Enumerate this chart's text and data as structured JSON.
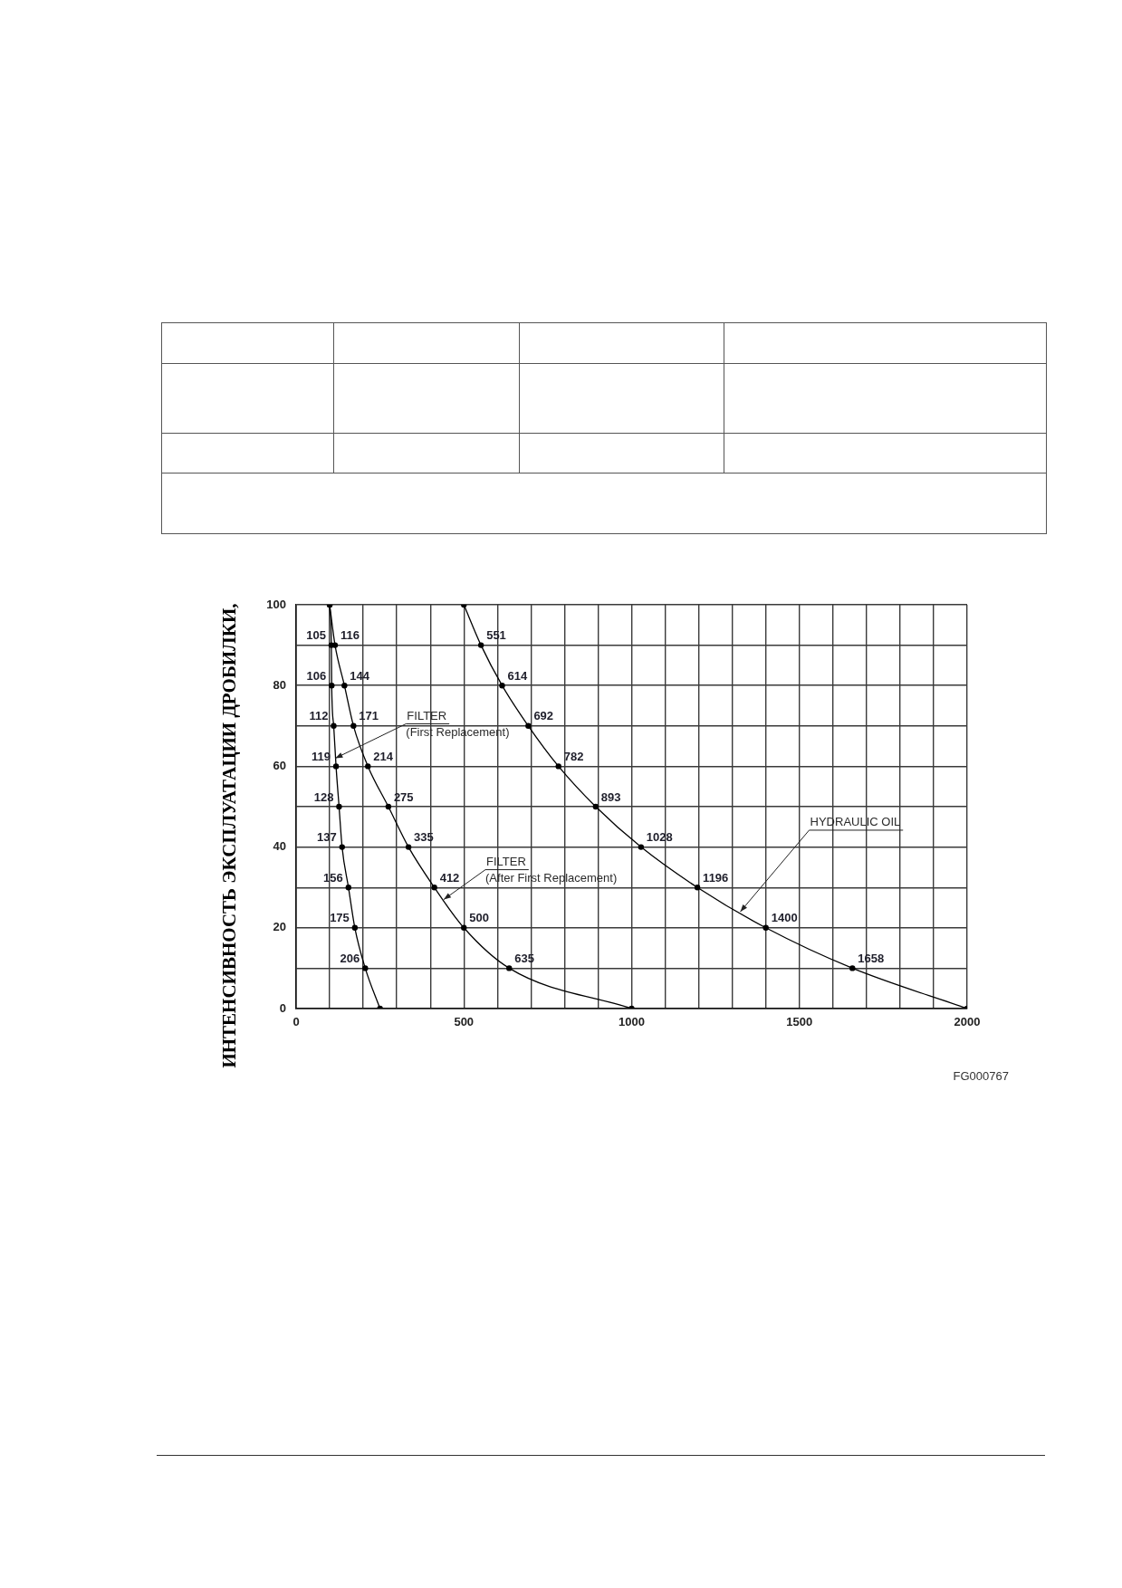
{
  "chart_data": {
    "type": "line",
    "ylabel": "ИНТЕНСИВНОСТЬ ЭКСПЛУАТАЦИИ ДРОБИЛКИ,",
    "xlim": [
      0,
      2000
    ],
    "ylim": [
      0,
      100
    ],
    "xticks": [
      0,
      {
        "value": 100,
        "label": null
      },
      {
        "value": 200,
        "label": null
      },
      {
        "value": 300,
        "label": null
      },
      {
        "value": 400,
        "label": null
      },
      500,
      {
        "value": 600,
        "label": null
      },
      {
        "value": 700,
        "label": null
      },
      {
        "value": 800,
        "label": null
      },
      {
        "value": 900,
        "label": null
      },
      1000,
      {
        "value": 1100,
        "label": null
      },
      {
        "value": 1200,
        "label": null
      },
      {
        "value": 1300,
        "label": null
      },
      {
        "value": 1400,
        "label": null
      },
      1500,
      {
        "value": 1600,
        "label": null
      },
      {
        "value": 1700,
        "label": null
      },
      {
        "value": 1800,
        "label": null
      },
      {
        "value": 1900,
        "label": null
      },
      2000
    ],
    "yticks": [
      0,
      {
        "value": 10,
        "label": null
      },
      20,
      {
        "value": 30,
        "label": null
      },
      40,
      {
        "value": 50,
        "label": null
      },
      60,
      {
        "value": 70,
        "label": null
      },
      80,
      {
        "value": 90,
        "label": null
      },
      100
    ],
    "grid": true,
    "marker": "circle",
    "line_style": "solid",
    "series": [
      {
        "color": "#000000",
        "x": [
          100,
          105,
          106,
          112,
          119,
          128,
          137,
          156,
          175,
          206,
          250
        ],
        "values": [
          100,
          90,
          80,
          70,
          60,
          50,
          40,
          30,
          20,
          10,
          0
        ]
      },
      {
        "color": "#000000",
        "x": [
          100,
          116,
          144,
          171,
          214,
          275,
          335,
          412,
          500,
          635,
          1000
        ],
        "values": [
          100,
          90,
          80,
          70,
          60,
          50,
          40,
          30,
          20,
          10,
          0
        ]
      },
      {
        "color": "#000000",
        "x": [
          500,
          551,
          614,
          692,
          782,
          893,
          1028,
          1196,
          1400,
          1658,
          2000
        ],
        "values": [
          100,
          90,
          80,
          70,
          60,
          50,
          40,
          30,
          20,
          10,
          0
        ]
      }
    ],
    "annotations": [
      {
        "text": "105",
        "x": 105,
        "y": 90
      },
      {
        "text": "106",
        "x": 106,
        "y": 80
      },
      {
        "text": "112",
        "x": 112,
        "y": 70
      },
      {
        "text": "119",
        "x": 119,
        "y": 60
      },
      {
        "text": "128",
        "x": 128,
        "y": 50
      },
      {
        "text": "137",
        "x": 137,
        "y": 40
      },
      {
        "text": "156",
        "x": 156,
        "y": 30
      },
      {
        "text": "175",
        "x": 175,
        "y": 20
      },
      {
        "text": "206",
        "x": 206,
        "y": 10
      },
      {
        "text": "116",
        "x": 116,
        "y": 90
      },
      {
        "text": "144",
        "x": 144,
        "y": 80
      },
      {
        "text": "171",
        "x": 171,
        "y": 70
      },
      {
        "text": "214",
        "x": 214,
        "y": 60
      },
      {
        "text": "275",
        "x": 275,
        "y": 50
      },
      {
        "text": "335",
        "x": 335,
        "y": 40
      },
      {
        "text": "412",
        "x": 412,
        "y": 30
      },
      {
        "text": "500",
        "x": 500,
        "y": 20
      },
      {
        "text": "635",
        "x": 635,
        "y": 10
      },
      {
        "text": "551",
        "x": 551,
        "y": 90
      },
      {
        "text": "614",
        "x": 614,
        "y": 80
      },
      {
        "text": "692",
        "x": 692,
        "y": 70
      },
      {
        "text": "782",
        "x": 782,
        "y": 60
      },
      {
        "text": "893",
        "x": 893,
        "y": 50
      },
      {
        "text": "1028",
        "x": 1028,
        "y": 40
      },
      {
        "text": "1196",
        "x": 1196,
        "y": 30
      },
      {
        "text": "1400",
        "x": 1400,
        "y": 20
      },
      {
        "text": "1658",
        "x": 1658,
        "y": 10
      },
      {
        "text": "FILTER\n(First Replacement)",
        "x": 117,
        "y": 62
      },
      {
        "text": "FILTER\n(After First Replacement)",
        "x": 440,
        "y": 27
      },
      {
        "text": "HYDRAULIC OIL",
        "x": 1324,
        "y": 24
      },
      "FG000767"
    ]
  }
}
